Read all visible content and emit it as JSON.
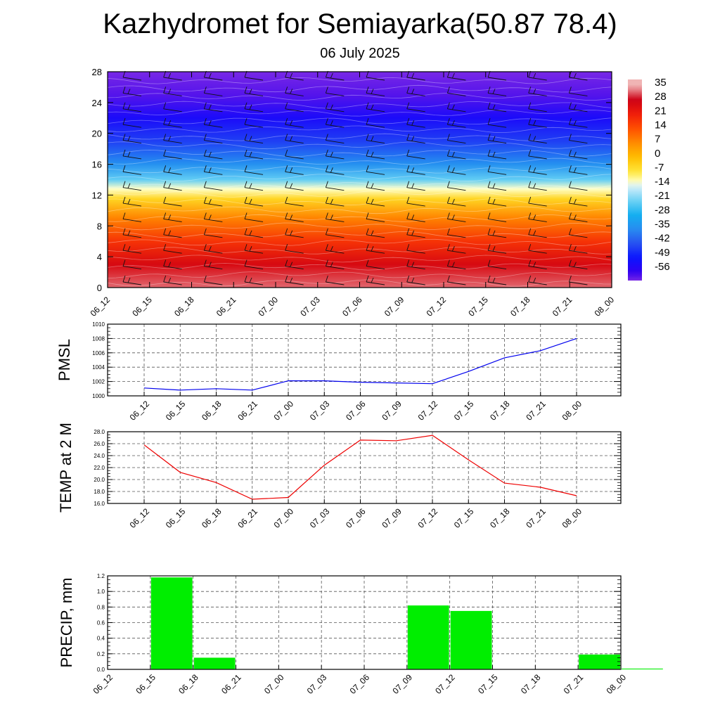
{
  "header": {
    "title": "Kazhydromet for Semiayarka(50.87 78.4)",
    "subtitle": "06 July 2025"
  },
  "colors": {
    "pmsl_line": "#0000ee",
    "temp_line": "#ee0000",
    "precip_bar": "#00ee00"
  },
  "chart_data": [
    {
      "type": "heatmap",
      "name": "cross-section",
      "x_ticks": [
        "06_12",
        "06_15",
        "06_18",
        "06_21",
        "07_00",
        "07_03",
        "07_06",
        "07_09",
        "07_12",
        "07_15",
        "07_18",
        "07_21",
        "08_00"
      ],
      "y_ticks": [
        0,
        4,
        8,
        12,
        16,
        20,
        24,
        28
      ],
      "ylim": [
        0,
        28
      ],
      "colorbar_labels": [
        "35",
        "28",
        "21",
        "14",
        "7",
        "0",
        "-7",
        "-14",
        "-21",
        "-28",
        "-35",
        "-42",
        "-49",
        "-56"
      ],
      "has_wind_barbs": true,
      "levels_profile": [
        {
          "y": 0,
          "v": 32
        },
        {
          "y": 3,
          "v": 26
        },
        {
          "y": 6,
          "v": 18
        },
        {
          "y": 9,
          "v": 8
        },
        {
          "y": 11.5,
          "v": -4
        },
        {
          "y": 12.8,
          "v": -12
        },
        {
          "y": 14,
          "v": -22
        },
        {
          "y": 16,
          "v": -34
        },
        {
          "y": 19,
          "v": -44
        },
        {
          "y": 22,
          "v": -52
        },
        {
          "y": 25,
          "v": -58
        },
        {
          "y": 28,
          "v": -60
        }
      ]
    },
    {
      "type": "line",
      "ylabel": "PMSL",
      "categories": [
        "06_12",
        "06_15",
        "06_18",
        "06_21",
        "07_00",
        "07_03",
        "07_06",
        "07_09",
        "07_12",
        "07_15",
        "07_18",
        "07_21",
        "08_00"
      ],
      "values": [
        1001.1,
        1000.8,
        1001.0,
        1000.8,
        1002.1,
        1002.1,
        1001.9,
        1001.8,
        1001.7,
        1003.4,
        1005.3,
        1006.3,
        1008.0
      ],
      "ylim": [
        1000,
        1010
      ],
      "y_ticks": [
        "1000",
        "1002",
        "1004",
        "1006",
        "1008",
        "1010"
      ],
      "grid": true
    },
    {
      "type": "line",
      "ylabel": "TEMP at 2 M",
      "categories": [
        "06_12",
        "06_15",
        "06_18",
        "06_21",
        "07_00",
        "07_03",
        "07_06",
        "07_09",
        "07_12",
        "07_15",
        "07_18",
        "07_21",
        "08_00"
      ],
      "values": [
        25.8,
        21.2,
        19.5,
        16.7,
        17.0,
        22.4,
        26.6,
        26.5,
        27.4,
        23.3,
        19.4,
        18.7,
        17.3
      ],
      "ylim": [
        16,
        28
      ],
      "y_ticks": [
        "16.0",
        "18.0",
        "20.0",
        "22.0",
        "24.0",
        "26.0",
        "28.0"
      ],
      "grid": true
    },
    {
      "type": "bar",
      "ylabel": "PRECIP, mm",
      "categories": [
        "06_12",
        "06_15",
        "06_18",
        "06_21",
        "07_00",
        "07_03",
        "07_06",
        "07_09",
        "07_12",
        "07_15",
        "07_18",
        "07_21",
        "08_00"
      ],
      "values": [
        0,
        1.18,
        0.15,
        0,
        0,
        0,
        0,
        0.82,
        0.75,
        0,
        0,
        0.19,
        0.01
      ],
      "ylim": [
        0,
        1.2
      ],
      "y_ticks": [
        "0.0",
        "0.2",
        "0.4",
        "0.6",
        "0.8",
        "1.0",
        "1.2"
      ],
      "grid": true
    }
  ]
}
